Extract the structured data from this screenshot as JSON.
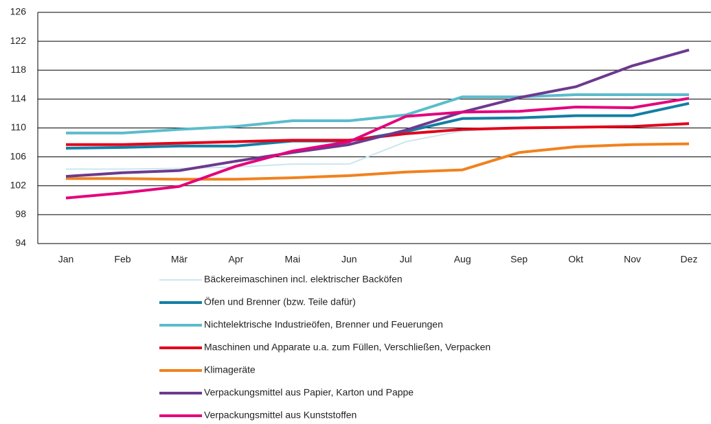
{
  "chart_data": {
    "type": "line",
    "categories": [
      "Jan",
      "Feb",
      "Mär",
      "Apr",
      "Mai",
      "Jun",
      "Jul",
      "Aug",
      "Sep",
      "Okt",
      "Nov",
      "Dez"
    ],
    "ylim": [
      94,
      126
    ],
    "yticks": [
      94,
      98,
      102,
      106,
      110,
      114,
      118,
      122,
      126
    ],
    "grid": true,
    "legend": "bottom",
    "series": [
      {
        "name": "Bäckereimaschinen incl. elektrischer Backöfen",
        "color": "#c9e7ef",
        "values": [
          104.3,
          104.3,
          104.4,
          104.6,
          105,
          105,
          108.1,
          109.6,
          110,
          110.2,
          110.3,
          110.5
        ]
      },
      {
        "name": "Öfen und Brenner (bzw. Teile dafür)",
        "color": "#137ea3",
        "values": [
          107.2,
          107.3,
          107.5,
          107.5,
          108.2,
          108.2,
          109.5,
          111.3,
          111.4,
          111.7,
          111.7,
          113.4
        ]
      },
      {
        "name": "Nichtelektrische Industrieöfen, Brenner und Feuerungen",
        "color": "#5cbccb",
        "values": [
          109.3,
          109.3,
          109.8,
          110.2,
          111,
          111,
          111.8,
          114.3,
          114.3,
          114.6,
          114.6,
          114.6
        ]
      },
      {
        "name": "Maschinen und Apparate u.a. zum Füllen, Verschließen, Verpacken",
        "color": "#e2001a",
        "values": [
          107.7,
          107.7,
          107.9,
          108.1,
          108.3,
          108.3,
          109.2,
          109.8,
          110,
          110.1,
          110.2,
          110.6
        ]
      },
      {
        "name": "Klimageräte",
        "color": "#f0821e",
        "values": [
          103,
          103,
          102.9,
          102.9,
          103.1,
          103.4,
          103.9,
          104.2,
          106.6,
          107.4,
          107.7,
          107.8
        ]
      },
      {
        "name": "Verpackungsmittel aus Papier, Karton und Pappe",
        "color": "#6c3a8e",
        "values": [
          103.3,
          103.8,
          104.1,
          105.4,
          106.6,
          107.7,
          109.7,
          112.2,
          114.2,
          115.7,
          118.6,
          120.8
        ]
      },
      {
        "name": "Verpackungsmittel aus Kunststoffen",
        "color": "#e4007c",
        "values": [
          100.3,
          101,
          101.9,
          104.7,
          106.8,
          108.1,
          111.6,
          112.2,
          112.3,
          112.9,
          112.8,
          114.1
        ]
      }
    ]
  }
}
